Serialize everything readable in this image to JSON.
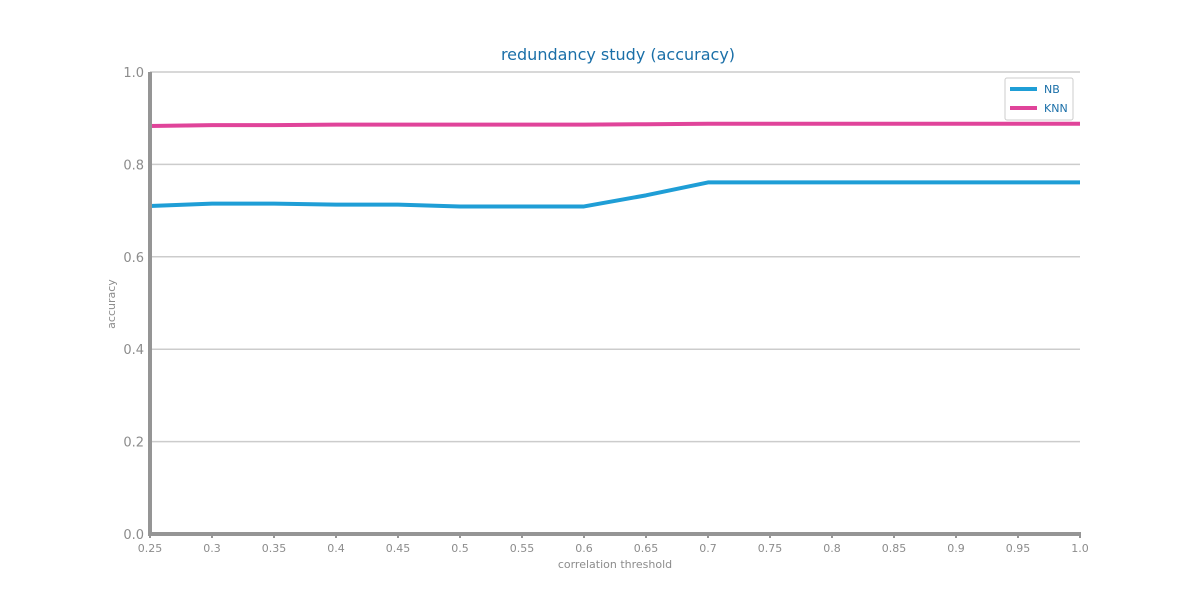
{
  "chart_data": {
    "type": "line",
    "title": "redundancy study (accuracy)",
    "xlabel": "correlation threshold",
    "ylabel": "accuracy",
    "x": [
      0.25,
      0.3,
      0.35,
      0.4,
      0.45,
      0.5,
      0.55,
      0.6,
      0.65,
      0.7,
      0.75,
      0.8,
      0.85,
      0.9,
      0.95,
      1.0
    ],
    "x_tick_labels": [
      "0.25",
      "0.3",
      "0.35",
      "0.4",
      "0.45",
      "0.5",
      "0.55",
      "0.6",
      "0.65",
      "0.7",
      "0.75",
      "0.8",
      "0.85",
      "0.9",
      "0.95",
      "1.0"
    ],
    "xlim": [
      0.25,
      1.0
    ],
    "ylim": [
      0.0,
      1.0
    ],
    "y_ticks": [
      0.0,
      0.2,
      0.4,
      0.6,
      0.8,
      1.0
    ],
    "y_tick_labels": [
      "0.0",
      "0.2",
      "0.4",
      "0.6",
      "0.8",
      "1.0"
    ],
    "grid": "horizontal",
    "legend_position": "top-right",
    "series": [
      {
        "name": "NB",
        "color": "#1f9ed6",
        "values": [
          0.71,
          0.715,
          0.715,
          0.713,
          0.713,
          0.709,
          0.709,
          0.709,
          0.733,
          0.761,
          0.761,
          0.761,
          0.761,
          0.761,
          0.761,
          0.761
        ]
      },
      {
        "name": "KNN",
        "color": "#e0449a",
        "values": [
          0.883,
          0.885,
          0.885,
          0.886,
          0.886,
          0.886,
          0.886,
          0.886,
          0.887,
          0.888,
          0.888,
          0.888,
          0.888,
          0.888,
          0.888,
          0.888
        ]
      }
    ],
    "colors": {
      "title": "#1a6fa8",
      "axis": "#959595",
      "grid": "#cccccc",
      "tick_text": "#8c8c8c",
      "legend_text": "#1a6fa8"
    }
  }
}
